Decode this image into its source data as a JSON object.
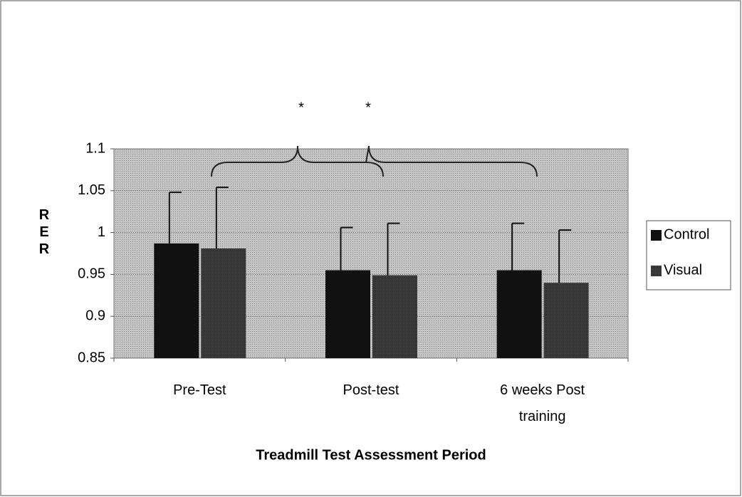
{
  "chart_data": {
    "type": "bar",
    "x_label": "Treadmill Test Assessment Period",
    "y_label": "R E R",
    "annotations": [
      "*",
      "*"
    ],
    "categories": [
      "Pre-Test",
      "Post-test",
      "6 weeks Post training"
    ],
    "series": [
      {
        "name": "Control",
        "color": "#111111",
        "values": [
          0.987,
          0.955,
          0.955
        ],
        "errors": [
          0.061,
          0.051,
          0.056
        ]
      },
      {
        "name": "Visual",
        "color": "#2e2e2e",
        "values": [
          0.981,
          0.949,
          0.94
        ],
        "errors": [
          0.073,
          0.062,
          0.063
        ]
      }
    ],
    "ylim": [
      0.85,
      1.1
    ],
    "yticks": [
      0.85,
      0.9,
      0.95,
      1,
      1.05,
      1.1
    ],
    "grid": true,
    "legend": "right"
  }
}
